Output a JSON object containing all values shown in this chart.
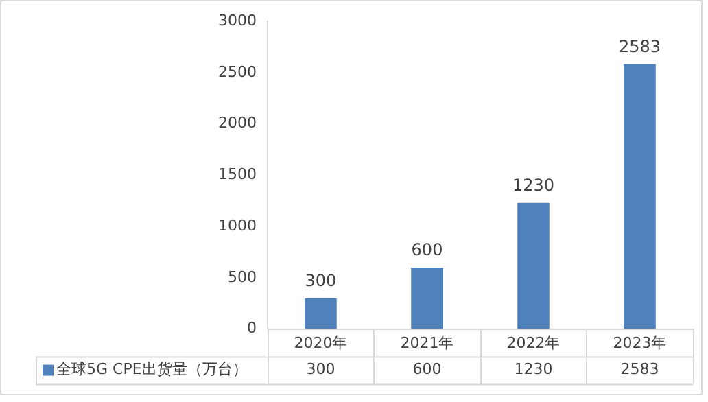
{
  "chart_data": {
    "type": "bar",
    "categories": [
      "2020年",
      "2021年",
      "2022年",
      "2023年"
    ],
    "series": [
      {
        "name": "全球5G CPE出货量（万台）",
        "color": "#4f81bd",
        "values": [
          300,
          600,
          1230,
          2583
        ]
      }
    ],
    "annotations": [
      "300",
      "600",
      "1230",
      "2583"
    ],
    "ylim": [
      0,
      3000
    ],
    "yticks": [
      0,
      500,
      1000,
      1500,
      2000,
      2500,
      3000
    ],
    "grid": false,
    "legend": "bottom",
    "data_labels": true
  }
}
